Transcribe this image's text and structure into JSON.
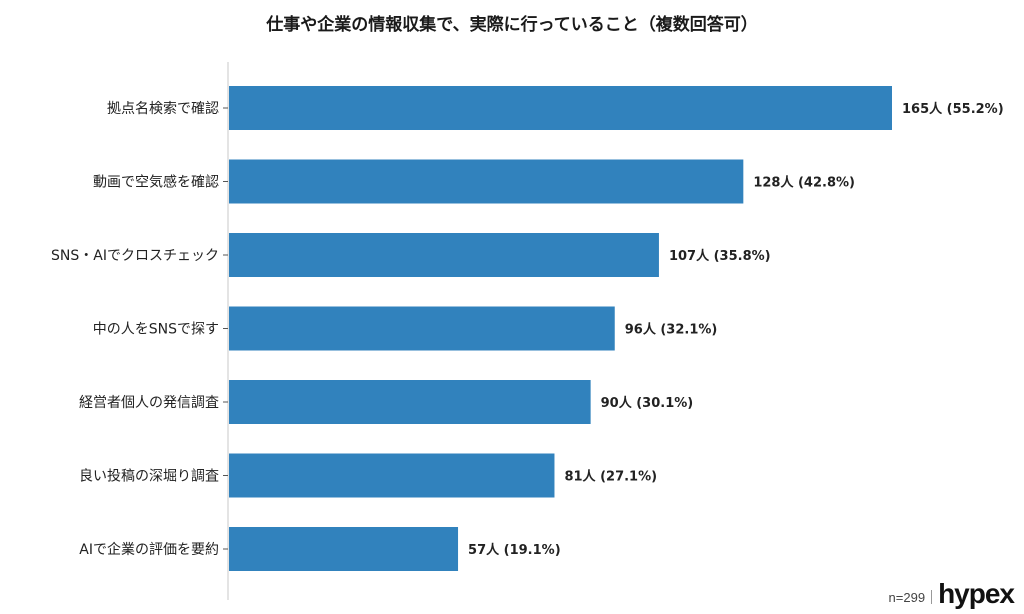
{
  "chart_data": {
    "type": "bar",
    "orientation": "horizontal",
    "title": "仕事や企業の情報収集で、実際に行っていること（複数回答可）",
    "categories": [
      "拠点名検索で確認",
      "動画で空気感を確認",
      "SNS・AIでクロスチェック",
      "中の人をSNSで探す",
      "経営者個人の発信調査",
      "良い投稿の深堀り調査",
      "AIで企業の評価を要約"
    ],
    "values": [
      165,
      128,
      107,
      96,
      90,
      81,
      57
    ],
    "data_labels": [
      "165人 (55.2%)",
      "128人 (42.8%)",
      "107人 (35.8%)",
      "96人 (32.1%)",
      "90人 (30.1%)",
      "81人 (27.1%)",
      "57人 (19.1%)"
    ],
    "bar_color": "#3182bd",
    "grid": false,
    "legend": "none"
  },
  "footer": {
    "sample_size": "n=299",
    "logo": "hypex"
  }
}
